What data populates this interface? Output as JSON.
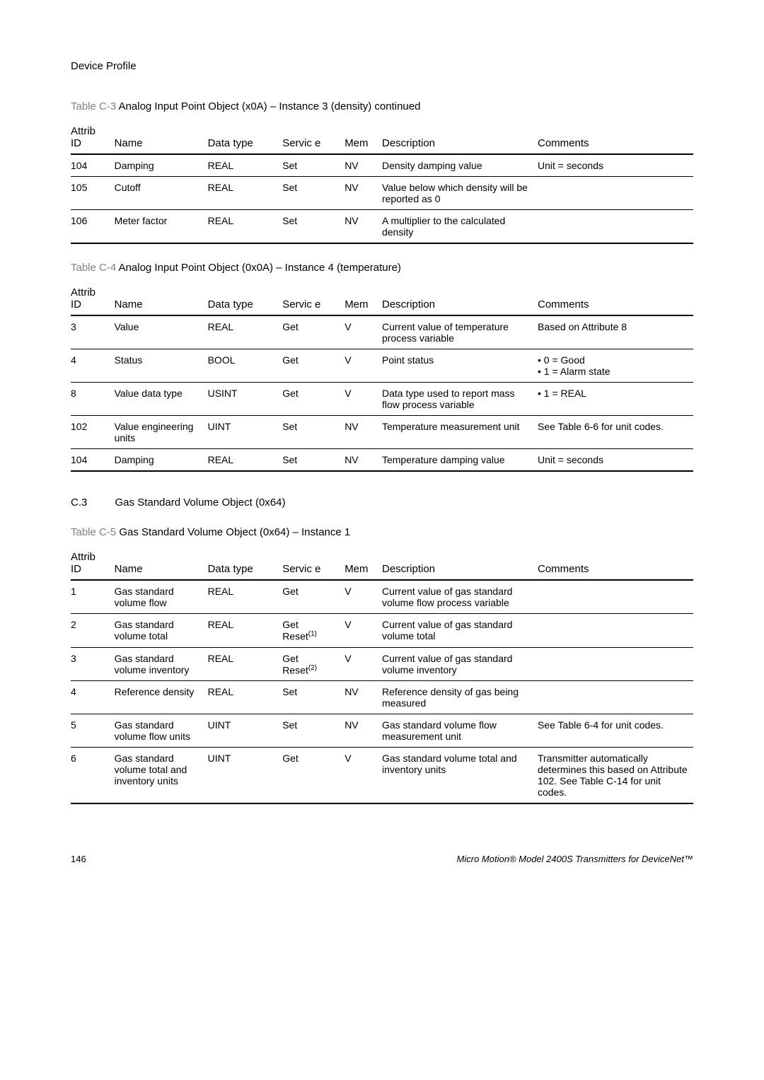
{
  "header": "Device Profile",
  "table_c3": {
    "caption_label": "Table C-3",
    "caption_title": "Analog Input Point Object (x0A) – Instance 3 (density) continued",
    "headers": [
      "Attrib\nID",
      "Name",
      "Data type",
      "Servic e",
      "Mem",
      "Description",
      "Comments"
    ],
    "rows": [
      {
        "id": "104",
        "name": "Damping",
        "datatype": "REAL",
        "service": "Set",
        "mem": "NV",
        "desc": "Density damping value",
        "comments": "Unit = seconds"
      },
      {
        "id": "105",
        "name": "Cutoff",
        "datatype": "REAL",
        "service": "Set",
        "mem": "NV",
        "desc": "Value below which density will be reported as 0",
        "comments": ""
      },
      {
        "id": "106",
        "name": "Meter factor",
        "datatype": "REAL",
        "service": "Set",
        "mem": "NV",
        "desc": "A multiplier to the calculated density",
        "comments": ""
      }
    ]
  },
  "table_c4": {
    "caption_label": "Table C-4",
    "caption_title": "Analog Input Point Object (0x0A) – Instance 4 (temperature)",
    "headers": [
      "Attrib\nID",
      "Name",
      "Data type",
      "Servic e",
      "Mem",
      "Description",
      "Comments"
    ],
    "rows": [
      {
        "id": "3",
        "name": "Value",
        "datatype": "REAL",
        "service": "Get",
        "mem": "V",
        "desc": "Current value of temperature process variable",
        "comments": "Based on Attribute 8"
      },
      {
        "id": "4",
        "name": "Status",
        "datatype": "BOOL",
        "service": "Get",
        "mem": "V",
        "desc": "Point status",
        "comments": "• 0 = Good\n• 1 = Alarm state"
      },
      {
        "id": "8",
        "name": "Value data type",
        "datatype": "USINT",
        "service": "Get",
        "mem": "V",
        "desc": "Data type used to report mass flow process variable",
        "comments": "• 1 = REAL"
      },
      {
        "id": "102",
        "name": "Value engineering units",
        "datatype": "UINT",
        "service": "Set",
        "mem": "NV",
        "desc": "Temperature measurement unit",
        "comments": "See Table 6-6 for unit codes."
      },
      {
        "id": "104",
        "name": "Damping",
        "datatype": "REAL",
        "service": "Set",
        "mem": "NV",
        "desc": "Temperature damping value",
        "comments": "Unit = seconds"
      }
    ]
  },
  "section_c3": {
    "number": "C.3",
    "title": "Gas Standard Volume Object (0x64)"
  },
  "table_c5": {
    "caption_label": "Table C-5",
    "caption_title": "Gas Standard Volume Object (0x64) – Instance 1",
    "headers": [
      "Attrib\nID",
      "Name",
      "Data type",
      "Servic e",
      "Mem",
      "Description",
      "Comments"
    ],
    "rows": [
      {
        "id": "1",
        "name": "Gas standard volume flow",
        "datatype": "REAL",
        "service": "Get",
        "mem": "V",
        "desc": "Current value of gas standard volume flow process variable",
        "comments": ""
      },
      {
        "id": "2",
        "name": "Gas standard volume total",
        "datatype": "REAL",
        "service": "Get\nReset(1)",
        "mem": "V",
        "desc": "Current value of gas standard volume total",
        "comments": ""
      },
      {
        "id": "3",
        "name": "Gas standard volume inventory",
        "datatype": "REAL",
        "service": "Get\nReset(2)",
        "mem": "V",
        "desc": "Current value of gas standard volume inventory",
        "comments": ""
      },
      {
        "id": "4",
        "name": "Reference density",
        "datatype": "REAL",
        "service": "Set",
        "mem": "NV",
        "desc": "Reference density of gas being measured",
        "comments": ""
      },
      {
        "id": "5",
        "name": "Gas standard volume flow units",
        "datatype": "UINT",
        "service": "Set",
        "mem": "NV",
        "desc": "Gas standard volume flow measurement unit",
        "comments": "See Table 6-4 for unit codes."
      },
      {
        "id": "6",
        "name": "Gas standard volume total and inventory units",
        "datatype": "UINT",
        "service": "Get",
        "mem": "V",
        "desc": "Gas standard volume total and inventory units",
        "comments": "Transmitter automatically determines this based on Attribute 102. See Table C-14 for unit codes."
      }
    ]
  },
  "footer": {
    "page": "146",
    "doc_title": "Micro Motion® Model 2400S Transmitters for DeviceNet™"
  }
}
